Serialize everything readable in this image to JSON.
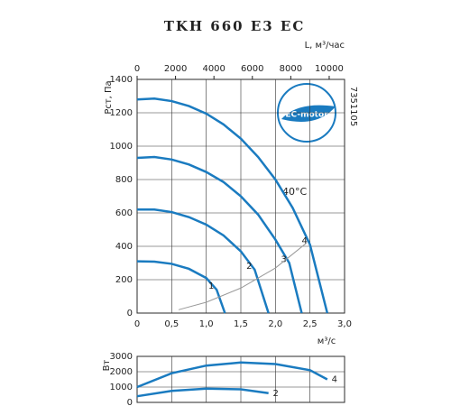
{
  "chart_data": [
    {
      "type": "line",
      "title": "TKH 660 E3 EC",
      "xlabel": "м³/с",
      "ylabel": "Pст, Па",
      "x2label": "L, м³/час",
      "code": "7351105",
      "logo": "EC-motor",
      "annotation": "40°C",
      "grid": true,
      "xlim": [
        0,
        3.0
      ],
      "xticks": [
        0,
        {
          "value": 0.5,
          "label": "0,5"
        },
        {
          "value": 1.0,
          "label": "1,0"
        },
        {
          "value": 1.5,
          "label": "1,5"
        },
        {
          "value": 2.0,
          "label": "2,0"
        },
        {
          "value": 2.5,
          "label": "2,5"
        },
        {
          "value": 3.0,
          "label": "3,0"
        }
      ],
      "x2lim": [
        0,
        10800
      ],
      "x2ticks": [
        0,
        2000,
        4000,
        6000,
        8000,
        10000
      ],
      "ylim": [
        0,
        1400
      ],
      "yticks": [
        0,
        200,
        400,
        600,
        800,
        1000,
        1200,
        1400
      ],
      "series": [
        {
          "name": "1",
          "color": "#1a7bc0",
          "x": [
            0,
            0.25,
            0.5,
            0.75,
            1,
            1.15,
            1.27
          ],
          "values": [
            310,
            308,
            295,
            265,
            210,
            140,
            0
          ]
        },
        {
          "name": "2",
          "color": "#1a7bc0",
          "x": [
            0,
            0.25,
            0.5,
            0.75,
            1,
            1.25,
            1.5,
            1.7,
            1.9
          ],
          "values": [
            620,
            620,
            605,
            575,
            530,
            465,
            370,
            260,
            0
          ]
        },
        {
          "name": "3",
          "color": "#1a7bc0",
          "x": [
            0,
            0.25,
            0.5,
            0.75,
            1,
            1.25,
            1.5,
            1.75,
            2,
            2.2,
            2.38
          ],
          "values": [
            930,
            935,
            920,
            890,
            845,
            785,
            700,
            590,
            440,
            300,
            0
          ]
        },
        {
          "name": "4",
          "color": "#1a7bc0",
          "x": [
            0,
            0.25,
            0.5,
            0.75,
            1,
            1.25,
            1.5,
            1.75,
            2,
            2.25,
            2.5,
            2.75
          ],
          "values": [
            1280,
            1285,
            1270,
            1240,
            1195,
            1130,
            1045,
            935,
            800,
            630,
            410,
            0
          ]
        },
        {
          "color": "#999999",
          "x": [
            0.6,
            1,
            1.5,
            2,
            2.45
          ],
          "values": [
            20,
            65,
            150,
            270,
            420
          ]
        }
      ]
    },
    {
      "type": "line",
      "ylabel": "Вт",
      "grid": true,
      "xlim": [
        0,
        3.0
      ],
      "ylim": [
        0,
        3000
      ],
      "yticks": [
        0,
        1000,
        2000,
        3000
      ],
      "series": [
        {
          "name": "4",
          "color": "#1a7bc0",
          "x": [
            0,
            0.5,
            1,
            1.5,
            2,
            2.5,
            2.75
          ],
          "values": [
            1000,
            1900,
            2400,
            2600,
            2500,
            2100,
            1500
          ]
        },
        {
          "name": "2",
          "color": "#1a7bc0",
          "x": [
            0,
            0.5,
            1,
            1.5,
            1.9
          ],
          "values": [
            400,
            750,
            900,
            850,
            600
          ]
        }
      ]
    }
  ]
}
